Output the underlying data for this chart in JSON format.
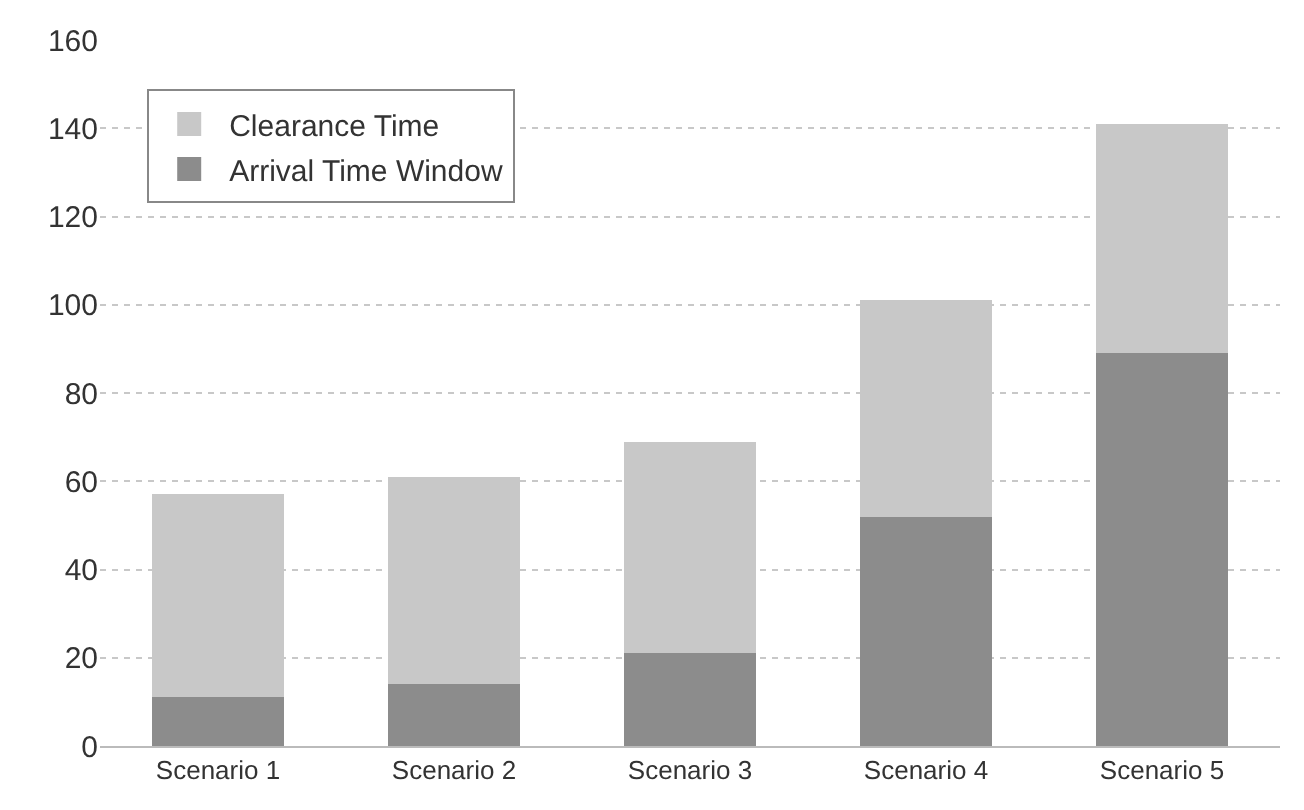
{
  "chart_data": {
    "type": "bar",
    "stacked": true,
    "categories": [
      "Scenario 1",
      "Scenario 2",
      "Scenario 3",
      "Scenario 4",
      "Scenario 5"
    ],
    "series": [
      {
        "name": "Arrival Time Window",
        "color": "#8c8c8c",
        "values": [
          11,
          14,
          21,
          52,
          89
        ]
      },
      {
        "name": "Clearance Time",
        "color": "#c8c8c8",
        "values": [
          46,
          47,
          48,
          49,
          52
        ]
      }
    ],
    "ylim": [
      0,
      160
    ],
    "yticks": [
      0,
      20,
      40,
      60,
      80,
      100,
      120,
      140,
      160
    ],
    "grid": "y",
    "legend": "top left"
  }
}
